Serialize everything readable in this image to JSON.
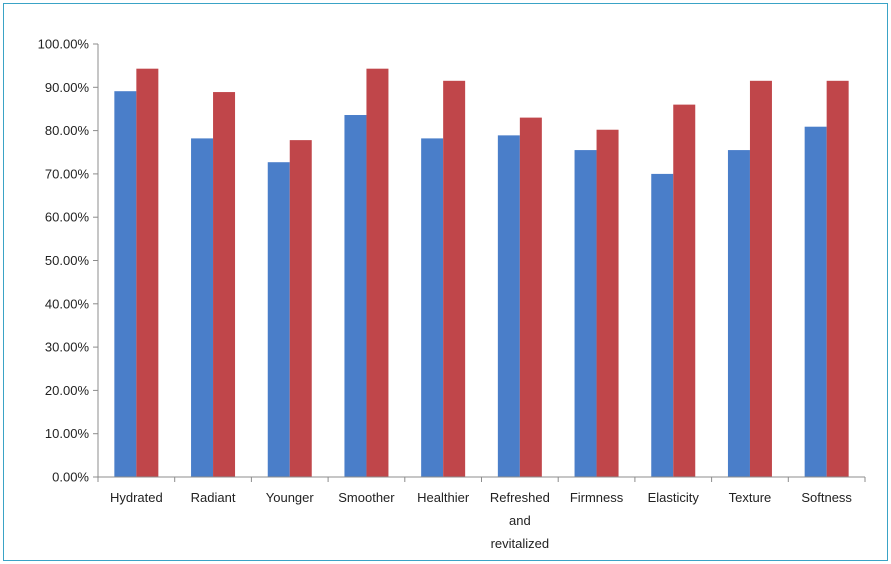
{
  "chart_data": {
    "type": "bar",
    "title": "",
    "xlabel": "",
    "ylabel": "",
    "ylim": [
      0,
      100
    ],
    "y_tick_step": 10,
    "y_tick_format": "percent_2dp",
    "grid": false,
    "legend": "none",
    "categories": [
      [
        "Hydrated"
      ],
      [
        "Radiant"
      ],
      [
        "Younger"
      ],
      [
        "Smoother"
      ],
      [
        "Healthier"
      ],
      [
        "Refreshed",
        "and",
        "revitalized"
      ],
      [
        "Firmness"
      ],
      [
        "Elasticity"
      ],
      [
        "Texture"
      ],
      [
        "Softness"
      ]
    ],
    "y_tick_labels": [
      "0.00%",
      "10.00%",
      "20.00%",
      "30.00%",
      "40.00%",
      "50.00%",
      "60.00%",
      "70.00%",
      "80.00%",
      "90.00%",
      "100.00%"
    ],
    "series": [
      {
        "color": "#4a7ec9",
        "values": [
          89.1,
          78.2,
          72.7,
          83.6,
          78.2,
          78.9,
          75.5,
          70.0,
          75.5,
          80.9
        ]
      },
      {
        "color": "#c0464a",
        "values": [
          94.3,
          88.9,
          77.8,
          94.3,
          91.5,
          83.0,
          80.2,
          86.0,
          91.5,
          91.5
        ]
      }
    ]
  }
}
